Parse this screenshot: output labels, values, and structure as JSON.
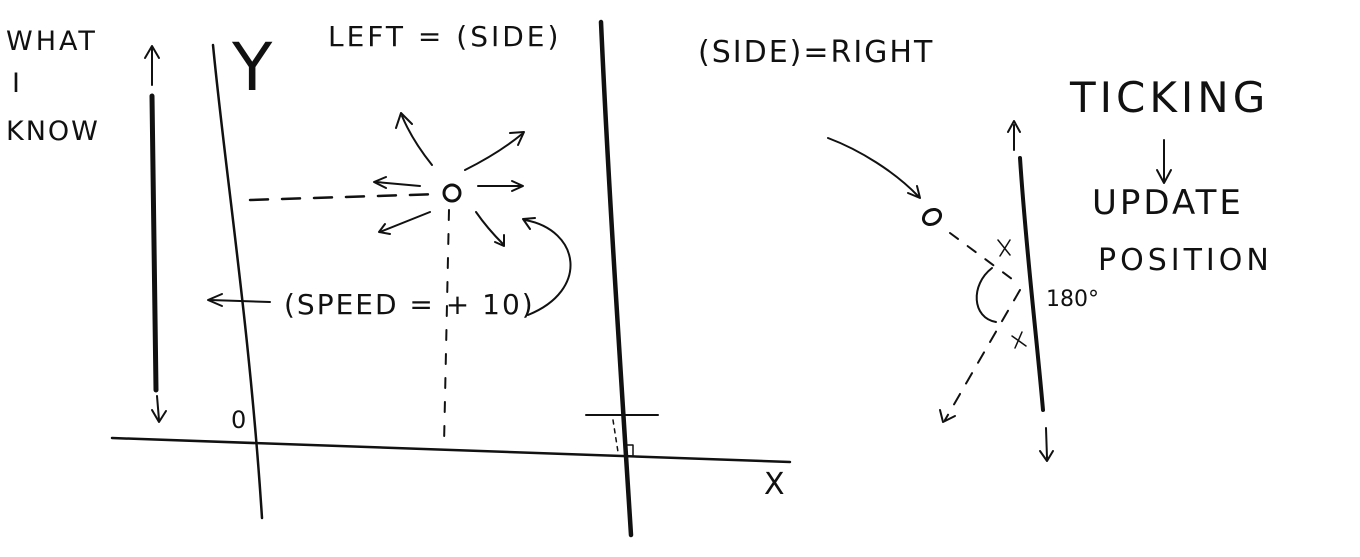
{
  "colors": {
    "ink": "#111111",
    "background": "#ffffff"
  },
  "labels": {
    "what_i_know_line1": "WHAT",
    "what_i_know_line2": "I",
    "what_i_know_line3": "KNOW",
    "y_axis": "Y",
    "x_axis": "X",
    "origin": "0",
    "left_side": "LEFT = (SIDE)",
    "right_side": "(SIDE)=RIGHT",
    "speed": "(SPEED = + 10)",
    "ticking": "TICKING",
    "update_line1": "UPDATE",
    "update_line2": "POSITION",
    "angle": "180°"
  }
}
